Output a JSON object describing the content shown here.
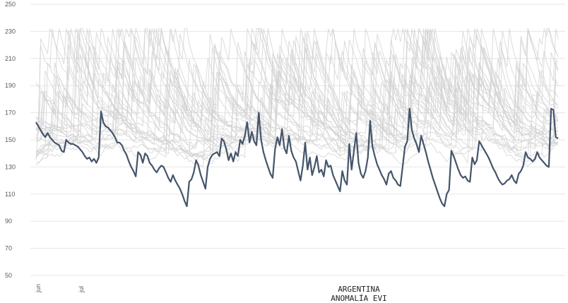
{
  "chart_data": {
    "type": "line",
    "title": "ARGENTINA",
    "subtitle": "ANOMALÍA EVI",
    "xlabel": "",
    "ylabel": "",
    "ylim": [
      50,
      250
    ],
    "y_ticks": [
      50,
      70,
      90,
      110,
      130,
      150,
      170,
      190,
      210,
      230,
      250
    ],
    "x_ticks": [
      "jun",
      "jul"
    ],
    "grid": true,
    "legend": "none",
    "colors": {
      "highlight": "#44546a",
      "background_series": "#d0d0d0",
      "grid": "#e6e6e6"
    },
    "highlight_series": {
      "values": [
        163,
        160,
        157,
        154,
        152,
        155,
        152,
        150,
        148,
        147,
        146,
        142,
        141,
        150,
        148,
        147,
        147,
        146,
        145,
        143,
        141,
        138,
        136,
        137,
        134,
        136,
        133,
        137,
        171,
        163,
        160,
        159,
        157,
        155,
        152,
        148,
        148,
        146,
        142,
        139,
        134,
        130,
        127,
        123,
        141,
        139,
        133,
        140,
        138,
        133,
        131,
        128,
        126,
        129,
        131,
        130,
        126,
        122,
        119,
        124,
        120,
        117,
        114,
        110,
        105,
        101,
        119,
        121,
        126,
        135,
        131,
        124,
        119,
        114,
        130,
        136,
        139,
        140,
        141,
        138,
        151,
        149,
        143,
        135,
        140,
        134,
        141,
        138,
        150,
        147,
        153,
        163,
        148,
        156,
        149,
        146,
        170,
        150,
        141,
        135,
        130,
        125,
        122,
        143,
        152,
        146,
        158,
        144,
        140,
        153,
        142,
        137,
        134,
        127,
        120,
        131,
        148,
        128,
        137,
        124,
        130,
        138,
        126,
        128,
        123,
        135,
        130,
        131,
        124,
        120,
        116,
        112,
        127,
        120,
        117,
        147,
        128,
        142,
        155,
        133,
        125,
        122,
        127,
        137,
        164,
        145,
        138,
        132,
        128,
        124,
        121,
        117,
        125,
        127,
        122,
        120,
        117,
        116,
        130,
        145,
        149,
        173,
        157,
        151,
        147,
        141,
        153,
        147,
        141,
        134,
        128,
        122,
        117,
        112,
        107,
        103,
        101,
        110,
        113,
        142,
        138,
        133,
        128,
        124,
        122,
        123,
        120,
        119,
        137,
        132,
        135,
        149,
        146,
        143,
        140,
        137,
        133,
        129,
        126,
        122,
        119,
        117,
        118,
        120,
        121,
        124,
        120,
        118,
        125,
        127,
        131,
        141,
        137,
        136,
        134,
        136,
        141,
        137,
        135,
        133,
        131,
        130,
        173,
        172,
        152,
        151
      ]
    },
    "background_series_note": "many overlapping gray series",
    "background_series_count": 30
  }
}
